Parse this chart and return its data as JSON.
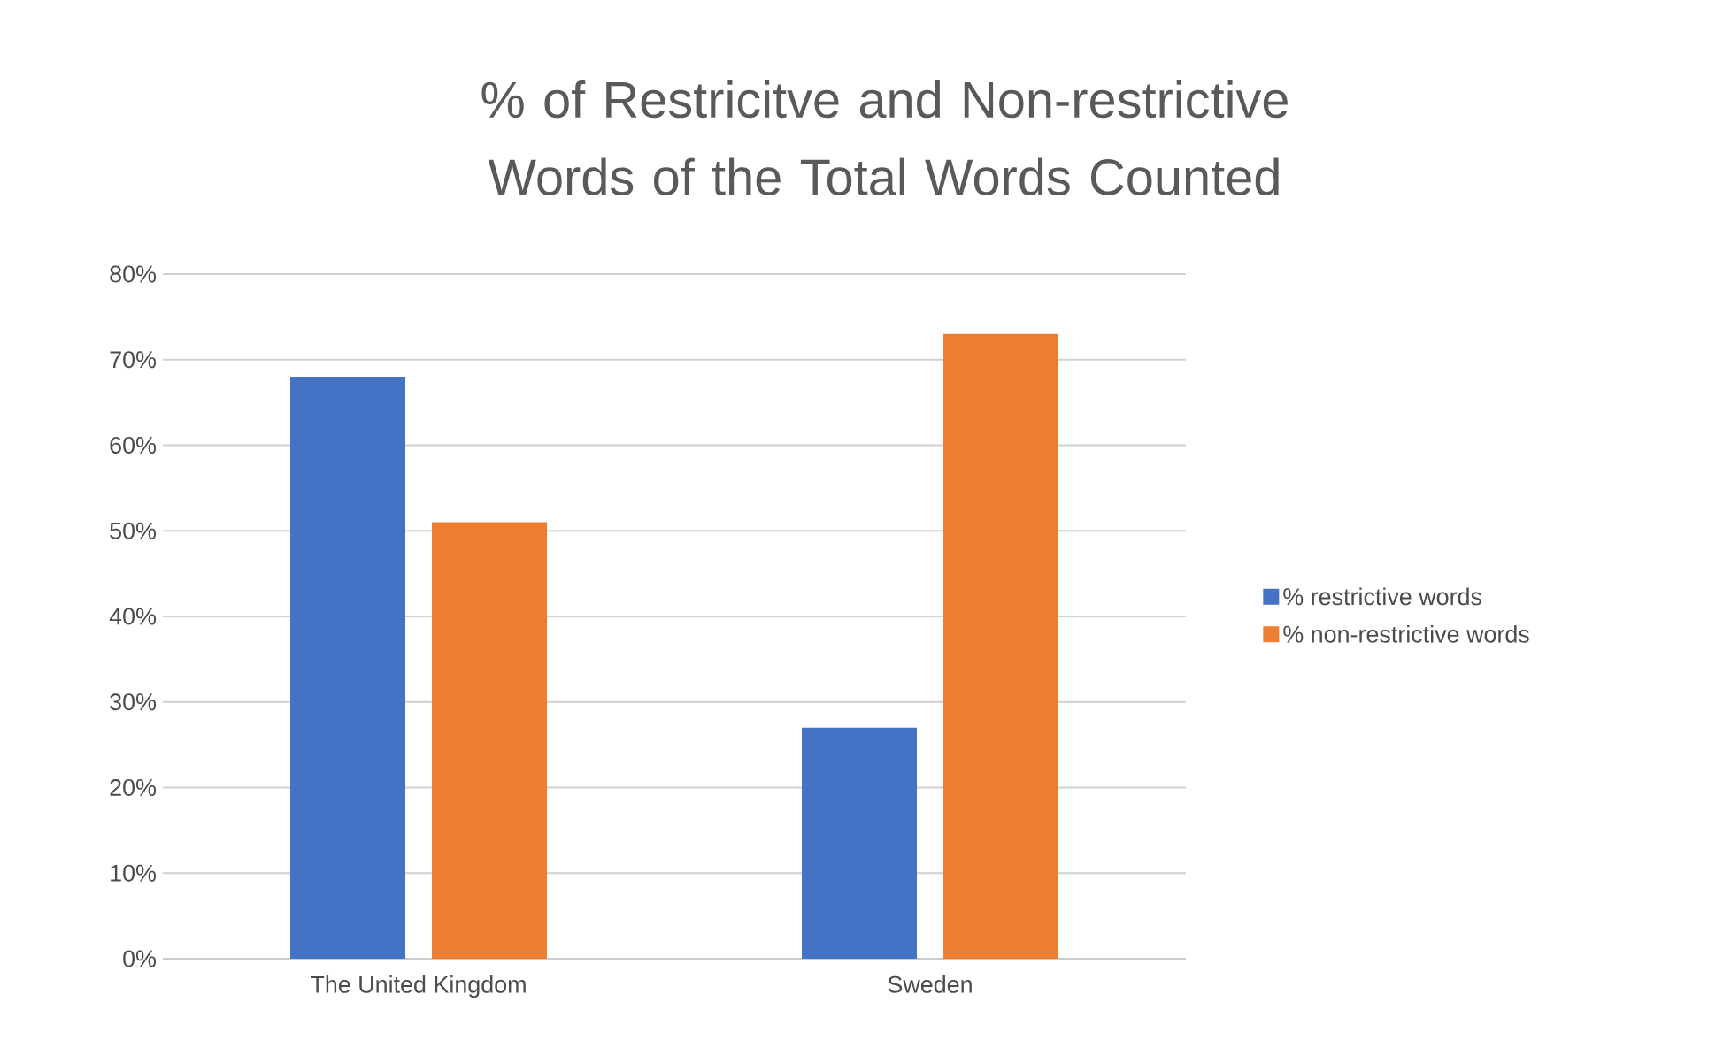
{
  "chart_data": {
    "type": "bar",
    "title": "% of Restricitve and Non-restrictive Words of the Total Words Counted",
    "categories": [
      "The United Kingdom",
      "Sweden"
    ],
    "series": [
      {
        "name": "% restrictive words",
        "color": "#4472c4",
        "values": [
          68,
          27
        ]
      },
      {
        "name": "% non-restrictive words",
        "color": "#ed7d31",
        "values": [
          51,
          73
        ]
      }
    ],
    "ylim": [
      0,
      80
    ],
    "yticks": [
      {
        "value": 0,
        "label": "0%"
      },
      {
        "value": 10,
        "label": "10%"
      },
      {
        "value": 20,
        "label": "20%"
      },
      {
        "value": 30,
        "label": "30%"
      },
      {
        "value": 40,
        "label": "40%"
      },
      {
        "value": 50,
        "label": "50%"
      },
      {
        "value": 60,
        "label": "60%"
      },
      {
        "value": 70,
        "label": "70%"
      },
      {
        "value": 80,
        "label": "80%"
      }
    ],
    "grid": "y",
    "legend": "right"
  }
}
